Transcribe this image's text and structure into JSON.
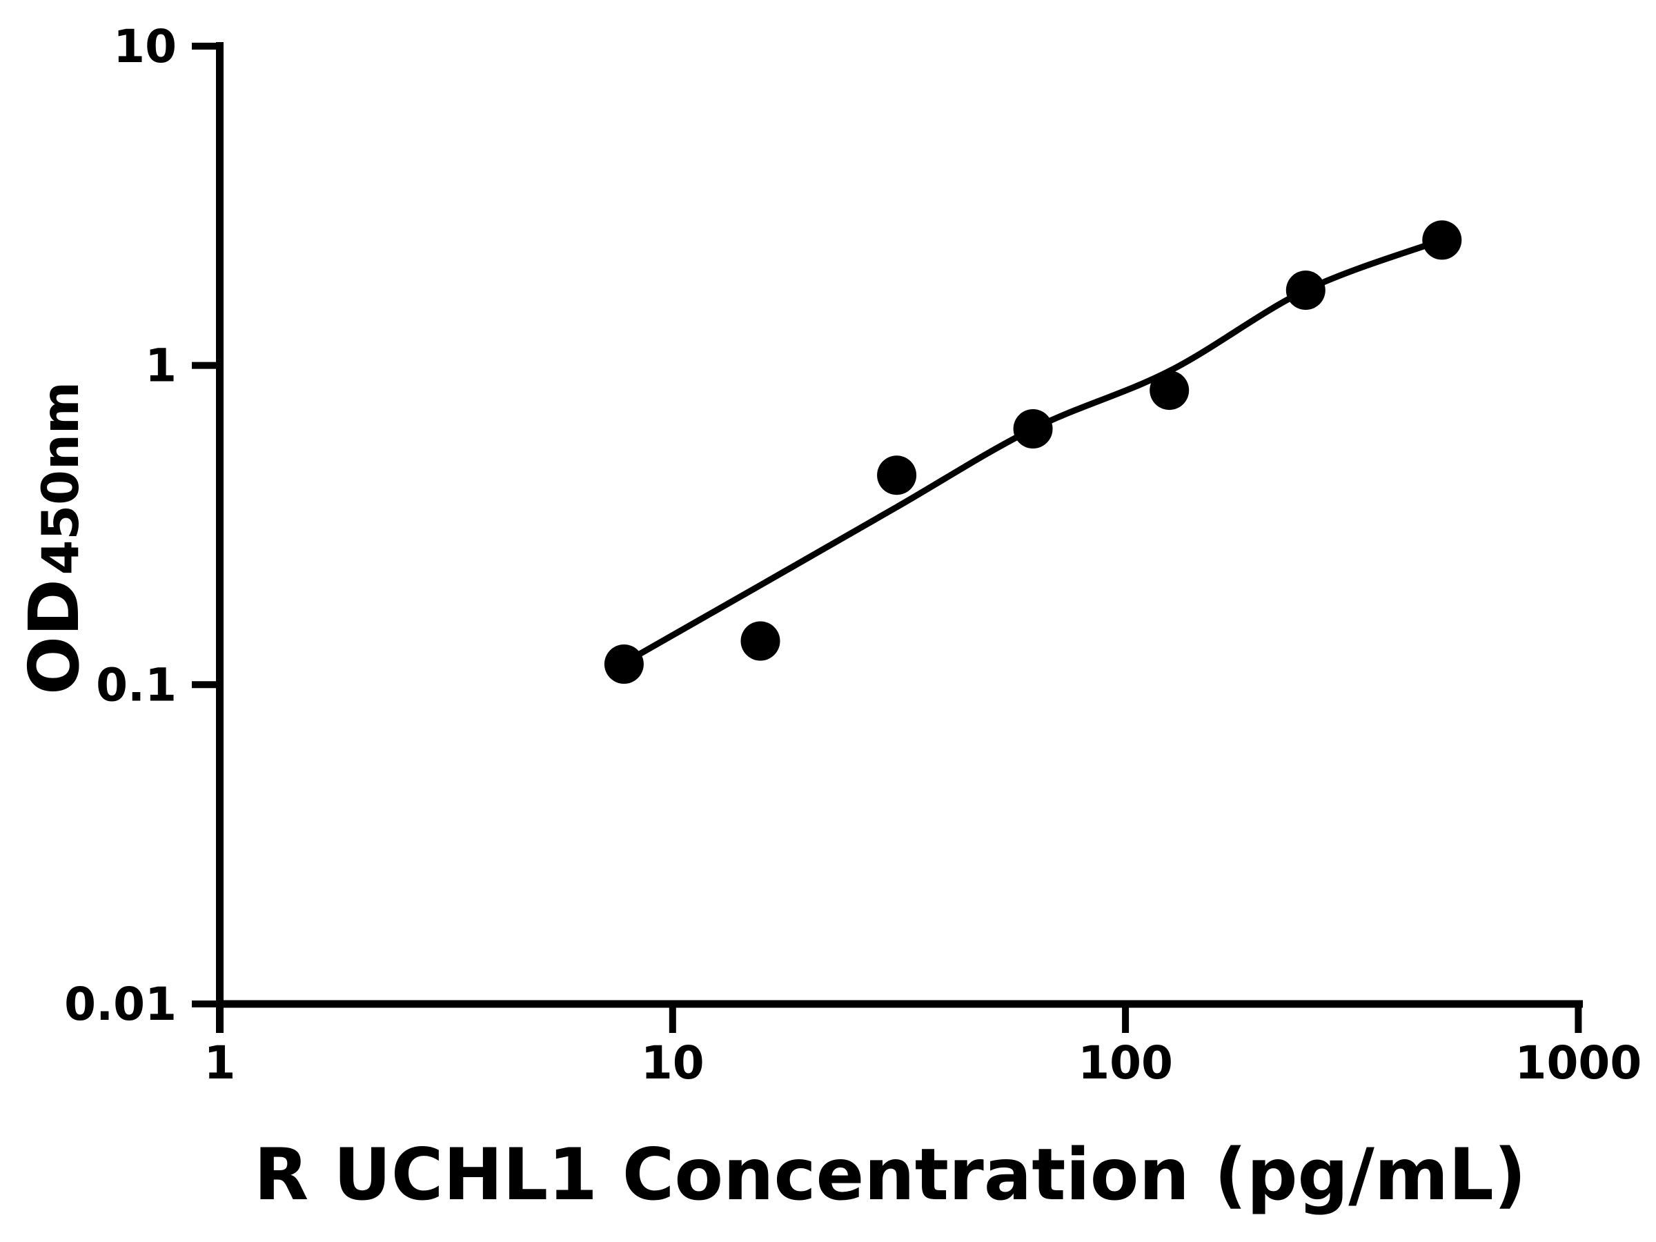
{
  "figure": {
    "background_color": "#ffffff",
    "ink_color": "#000000"
  },
  "chart_data": {
    "type": "scatter",
    "title": "",
    "xlabel": "R UCHL1 Concentration (pg/mL)",
    "ylabel": "OD450nm",
    "ylabel_main": "OD",
    "ylabel_sub": "450nm",
    "x_scale": "log",
    "y_scale": "log",
    "xlim": [
      1,
      1000
    ],
    "ylim": [
      0.01,
      10
    ],
    "grid": false,
    "legend_position": "none",
    "x_ticks": [
      {
        "value": 1,
        "label": "1"
      },
      {
        "value": 10,
        "label": "10"
      },
      {
        "value": 100,
        "label": "100"
      },
      {
        "value": 1000,
        "label": "1000"
      }
    ],
    "y_ticks": [
      {
        "value": 10,
        "label": "10"
      },
      {
        "value": 1,
        "label": "1"
      },
      {
        "value": 0.1,
        "label": "0.1"
      },
      {
        "value": 0.01,
        "label": "0.01"
      }
    ],
    "series": [
      {
        "name": "standard-points",
        "type": "scatter",
        "marker": "circle-filled",
        "color": "#000000",
        "points": [
          [
            7.8125,
            0.116
          ],
          [
            15.625,
            0.137
          ],
          [
            31.25,
            0.453
          ],
          [
            62.5,
            0.633
          ],
          [
            125,
            0.836
          ],
          [
            250,
            1.72
          ],
          [
            500,
            2.47
          ]
        ]
      },
      {
        "name": "fit-curve",
        "type": "line",
        "color": "#000000",
        "points": [
          [
            7.8125,
            0.117
          ],
          [
            15.625,
            0.205
          ],
          [
            31.25,
            0.36
          ],
          [
            62.5,
            0.633
          ],
          [
            125,
            0.96
          ],
          [
            250,
            1.72
          ],
          [
            500,
            2.47
          ]
        ]
      }
    ]
  }
}
